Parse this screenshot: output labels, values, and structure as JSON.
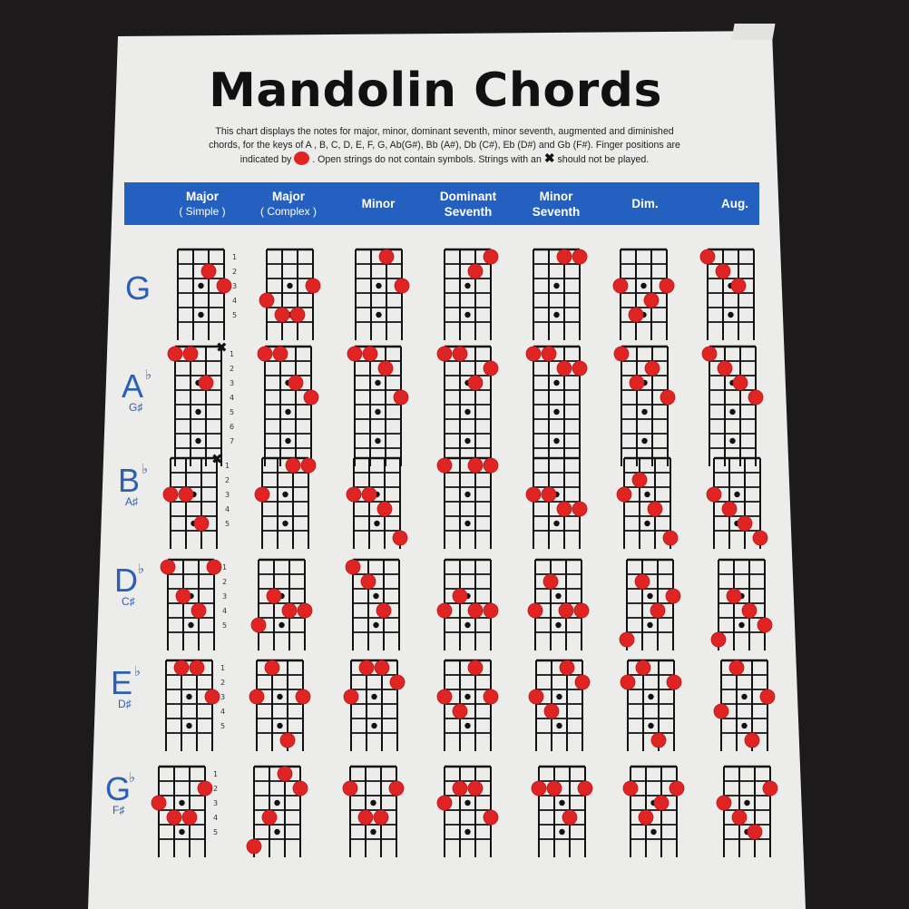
{
  "title": "Mandolin Chords",
  "description": {
    "line1": "This chart displays the notes for major, minor, dominant seventh, minor seventh, augmented and diminished",
    "line2": "chords, for the keys of  A , B, C, D, E, F, G, Ab(G#), Bb (A#), Db (C#), Eb (D#) and Gb (F#). Finger positions are",
    "line3a": "indicated by",
    "line3b": ". Open strings do not contain symbols. Strings with an",
    "line3c": "should not be played.",
    "x_symbol": "✖"
  },
  "colors": {
    "header": "#2360bf",
    "finger_dot": "#e02424",
    "key_text": "#2a5fb3"
  },
  "columns": [
    {
      "label": "Major",
      "sub": "( Simple )"
    },
    {
      "label": "Major",
      "sub": "( Complex )"
    },
    {
      "label": "Minor",
      "sub": ""
    },
    {
      "label": "Dominant",
      "sub": "Seventh"
    },
    {
      "label": "Minor",
      "sub": "Seventh"
    },
    {
      "label": "Dim.",
      "sub": ""
    },
    {
      "label": "Aug.",
      "sub": ""
    }
  ],
  "rows": [
    {
      "key": "G",
      "flat": "",
      "alt": "",
      "frets": 5,
      "chords": [
        [
          [
            3,
            2
          ],
          [
            4,
            3
          ]
        ],
        [
          [
            1,
            4
          ],
          [
            2,
            5
          ],
          [
            3,
            5
          ],
          [
            4,
            3
          ]
        ],
        [
          [
            3,
            1
          ],
          [
            4,
            3
          ]
        ],
        [
          [
            3,
            2
          ],
          [
            4,
            1
          ]
        ],
        [
          [
            3,
            1
          ],
          [
            4,
            1
          ]
        ],
        [
          [
            1,
            3
          ],
          [
            2,
            5
          ],
          [
            3,
            4
          ],
          [
            4,
            3
          ]
        ],
        [
          [
            1,
            1
          ],
          [
            2,
            2
          ],
          [
            3,
            3
          ]
        ]
      ],
      "muted": [
        [],
        [],
        [],
        [],
        [],
        [],
        []
      ]
    },
    {
      "key": "A",
      "flat": "♭",
      "alt": "G♯",
      "frets": 7,
      "chords": [
        [
          [
            1,
            1
          ],
          [
            2,
            1
          ],
          [
            3,
            3
          ]
        ],
        [
          [
            1,
            1
          ],
          [
            2,
            1
          ],
          [
            3,
            3
          ],
          [
            4,
            4
          ]
        ],
        [
          [
            1,
            1
          ],
          [
            2,
            1
          ],
          [
            3,
            2
          ],
          [
            4,
            4
          ]
        ],
        [
          [
            1,
            1
          ],
          [
            2,
            1
          ],
          [
            3,
            3
          ],
          [
            4,
            2
          ]
        ],
        [
          [
            1,
            1
          ],
          [
            2,
            1
          ],
          [
            3,
            2
          ],
          [
            4,
            2
          ]
        ],
        [
          [
            1,
            1
          ],
          [
            2,
            3
          ],
          [
            3,
            2
          ],
          [
            4,
            4
          ]
        ],
        [
          [
            1,
            1
          ],
          [
            2,
            2
          ],
          [
            3,
            3
          ],
          [
            4,
            4
          ]
        ]
      ],
      "muted": [
        [
          4
        ],
        [],
        [],
        [],
        [],
        [],
        []
      ]
    },
    {
      "key": "B",
      "flat": "♭",
      "alt": "A♯",
      "frets": 5,
      "chords": [
        [
          [
            1,
            3
          ],
          [
            2,
            3
          ],
          [
            3,
            5
          ]
        ],
        [
          [
            1,
            3
          ],
          [
            3,
            1
          ],
          [
            4,
            1
          ]
        ],
        [
          [
            1,
            3
          ],
          [
            2,
            3
          ],
          [
            3,
            4
          ],
          [
            4,
            6
          ]
        ],
        [
          [
            1,
            1
          ],
          [
            3,
            1
          ],
          [
            4,
            1
          ]
        ],
        [
          [
            1,
            3
          ],
          [
            2,
            3
          ],
          [
            3,
            4
          ],
          [
            4,
            4
          ]
        ],
        [
          [
            1,
            3
          ],
          [
            2,
            2
          ],
          [
            3,
            4
          ],
          [
            4,
            6
          ]
        ],
        [
          [
            1,
            3
          ],
          [
            2,
            4
          ],
          [
            3,
            5
          ],
          [
            4,
            6
          ]
        ]
      ],
      "muted": [
        [
          4
        ],
        [],
        [],
        [],
        [],
        [],
        []
      ]
    },
    {
      "key": "D",
      "flat": "♭",
      "alt": "C♯",
      "frets": 5,
      "chords": [
        [
          [
            1,
            1
          ],
          [
            2,
            3
          ],
          [
            3,
            4
          ],
          [
            4,
            1
          ]
        ],
        [
          [
            1,
            5
          ],
          [
            2,
            3
          ],
          [
            3,
            4
          ],
          [
            4,
            4
          ]
        ],
        [
          [
            1,
            1
          ],
          [
            2,
            2
          ],
          [
            3,
            4
          ]
        ],
        [
          [
            1,
            4
          ],
          [
            2,
            3
          ],
          [
            3,
            4
          ],
          [
            4,
            4
          ]
        ],
        [
          [
            1,
            4
          ],
          [
            2,
            2
          ],
          [
            3,
            4
          ],
          [
            4,
            4
          ]
        ],
        [
          [
            1,
            6
          ],
          [
            2,
            2
          ],
          [
            3,
            4
          ],
          [
            4,
            3
          ]
        ],
        [
          [
            1,
            6
          ],
          [
            2,
            3
          ],
          [
            3,
            4
          ],
          [
            4,
            5
          ]
        ]
      ],
      "muted": [
        [],
        [],
        [],
        [],
        [],
        [],
        []
      ]
    },
    {
      "key": "E",
      "flat": "♭",
      "alt": "D♯",
      "frets": 5,
      "chords": [
        [
          [
            2,
            1
          ],
          [
            3,
            1
          ],
          [
            4,
            3
          ]
        ],
        [
          [
            1,
            3
          ],
          [
            2,
            1
          ],
          [
            3,
            6
          ],
          [
            4,
            3
          ]
        ],
        [
          [
            1,
            3
          ],
          [
            2,
            1
          ],
          [
            3,
            1
          ],
          [
            4,
            2
          ]
        ],
        [
          [
            1,
            3
          ],
          [
            2,
            4
          ],
          [
            3,
            1
          ],
          [
            4,
            3
          ]
        ],
        [
          [
            1,
            3
          ],
          [
            2,
            4
          ],
          [
            3,
            1
          ],
          [
            4,
            2
          ]
        ],
        [
          [
            1,
            2
          ],
          [
            2,
            1
          ],
          [
            3,
            6
          ],
          [
            4,
            2
          ]
        ],
        [
          [
            1,
            4
          ],
          [
            2,
            1
          ],
          [
            3,
            6
          ],
          [
            4,
            3
          ]
        ]
      ],
      "muted": [
        [],
        [],
        [],
        [],
        [],
        [],
        []
      ]
    },
    {
      "key": "G",
      "flat": "♭",
      "alt": "F♯",
      "frets": 5,
      "chords": [
        [
          [
            1,
            3
          ],
          [
            2,
            4
          ],
          [
            3,
            4
          ],
          [
            4,
            2
          ]
        ],
        [
          [
            1,
            6
          ],
          [
            2,
            4
          ],
          [
            3,
            1
          ],
          [
            4,
            2
          ]
        ],
        [
          [
            1,
            2
          ],
          [
            2,
            4
          ],
          [
            3,
            4
          ],
          [
            4,
            2
          ]
        ],
        [
          [
            1,
            3
          ],
          [
            2,
            2
          ],
          [
            3,
            2
          ],
          [
            4,
            4
          ]
        ],
        [
          [
            1,
            2
          ],
          [
            2,
            2
          ],
          [
            3,
            4
          ],
          [
            4,
            2
          ]
        ],
        [
          [
            1,
            2
          ],
          [
            2,
            4
          ],
          [
            3,
            3
          ],
          [
            4,
            2
          ]
        ],
        [
          [
            1,
            3
          ],
          [
            2,
            4
          ],
          [
            3,
            5
          ],
          [
            4,
            2
          ]
        ]
      ],
      "muted": [
        [],
        [],
        [],
        [],
        [],
        [],
        []
      ]
    }
  ]
}
